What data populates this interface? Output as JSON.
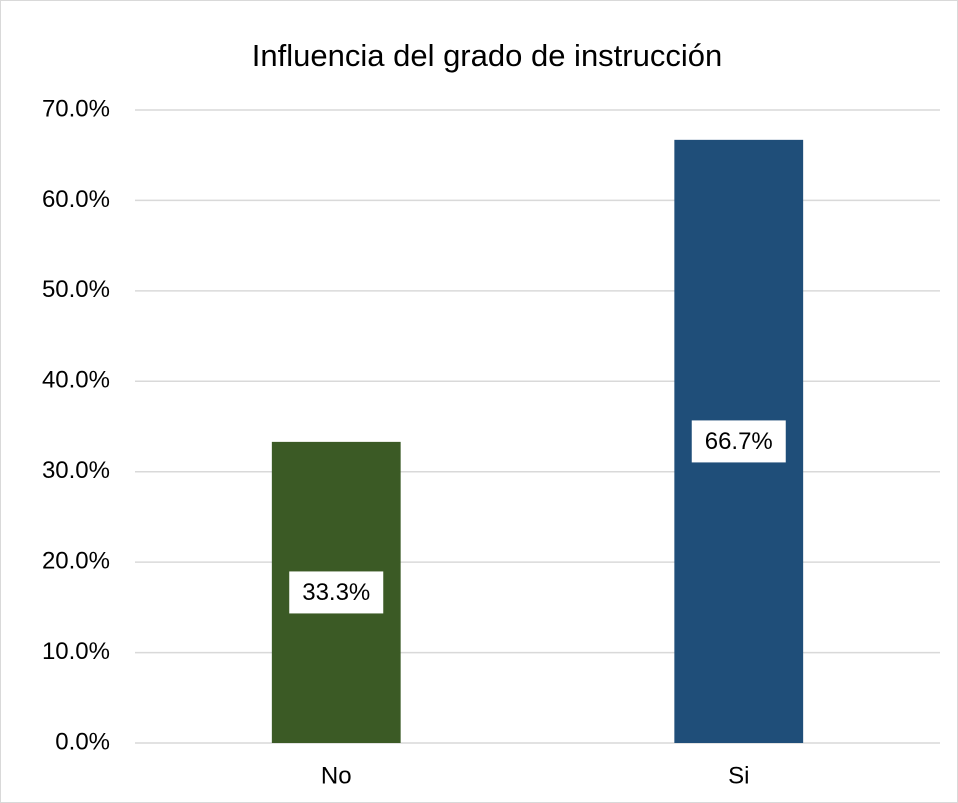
{
  "chart_data": {
    "type": "bar",
    "title": "Influencia del grado de instrucción",
    "categories": [
      "No",
      "Si"
    ],
    "values": [
      33.3,
      66.7
    ],
    "value_labels": [
      "33.3%",
      "66.7%"
    ],
    "colors": [
      "#3b5a25",
      "#1f4e79"
    ],
    "ylim": [
      0,
      70
    ],
    "yticks": [
      {
        "value": 0,
        "label": "0.0%"
      },
      {
        "value": 10,
        "label": "10.0%"
      },
      {
        "value": 20,
        "label": "20.0%"
      },
      {
        "value": 30,
        "label": "30.0%"
      },
      {
        "value": 40,
        "label": "40.0%"
      },
      {
        "value": 50,
        "label": "50.0%"
      },
      {
        "value": 60,
        "label": "60.0%"
      },
      {
        "value": 70,
        "label": "70.0%"
      }
    ],
    "grid": true
  }
}
